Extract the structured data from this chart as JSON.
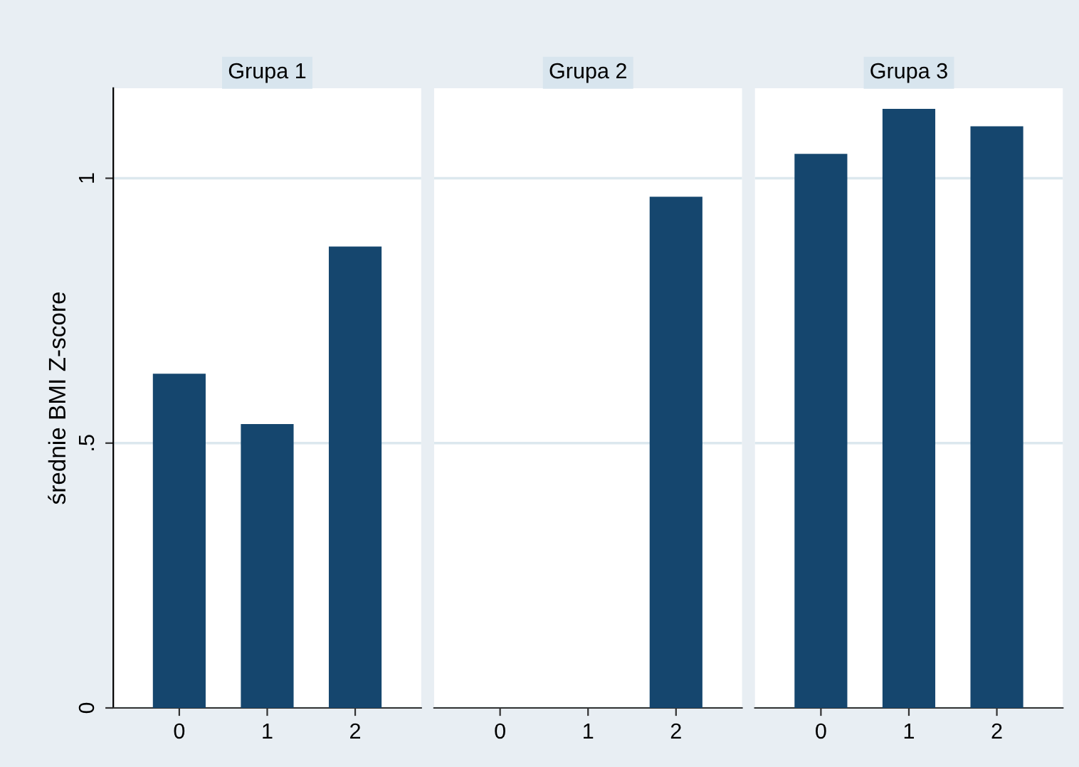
{
  "chart_data": [
    {
      "type": "bar",
      "title": "Grupa 1",
      "ylabel": "średnie BMI Z-score",
      "categories": [
        "0",
        "1",
        "2"
      ],
      "values": [
        0.631,
        0.536,
        0.871
      ],
      "color": "#15466e",
      "ylim": [
        0,
        1.17
      ],
      "yticks": [
        0,
        {
          "value": 0.5,
          "label": ".5"
        },
        1
      ],
      "grid": "y"
    },
    {
      "type": "bar",
      "title": "Grupa 2",
      "categories": [
        "0",
        "1",
        "2"
      ],
      "values": [
        null,
        null,
        0.965
      ],
      "color": "#15466e",
      "ylim": [
        0,
        1.17
      ],
      "yticks": [
        {
          "value": 0,
          "label": null
        },
        {
          "value": 0.5,
          "label": null
        },
        {
          "value": 1,
          "label": null
        }
      ],
      "grid": "y",
      "tick_labels": "x"
    },
    {
      "type": "bar",
      "title": "Grupa 3",
      "categories": [
        "0",
        "1",
        "2"
      ],
      "values": [
        1.046,
        1.131,
        1.098
      ],
      "color": "#15466e",
      "ylim": [
        0,
        1.17
      ],
      "yticks": [
        {
          "value": 0,
          "label": null
        },
        {
          "value": 0.5,
          "label": null
        },
        {
          "value": 1,
          "label": null
        }
      ],
      "grid": "y",
      "tick_labels": "x"
    }
  ]
}
